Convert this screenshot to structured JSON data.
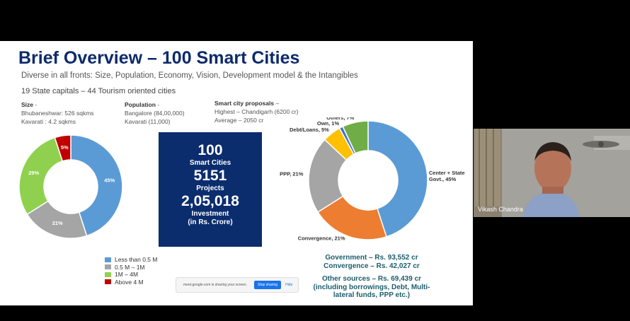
{
  "slide": {
    "title": "Brief Overview – 100 Smart Cities",
    "subtitle": "Diverse in all fronts: Size, Population, Economy, Vision, Development model & the Intangibles",
    "capitals": "19 State capitals – 44 Tourism oriented cities",
    "size": {
      "label": "Size",
      "suffix": " -",
      "line1": "Bhubaneshwar: 526 sqkms",
      "line2": "Kavarati : 4.2 sqkms"
    },
    "population": {
      "label": "Population",
      "suffix": " -",
      "line1": "Bangalore (84,00,000)",
      "line2": "Kavarati (11,000)"
    },
    "proposals": {
      "label": "Smart city proposals",
      "suffix": " –",
      "line1": "Highest – Chandigarh (6200 cr)",
      "line2": "Average – 2050 cr"
    },
    "stats": {
      "cities_value": "100",
      "cities_label": "Smart Cities",
      "projects_value": "5151",
      "projects_label": "Projects",
      "investment_value": "2,05,018",
      "investment_label1": "Investment",
      "investment_label2": "(in Rs. Crore)"
    },
    "legend": [
      {
        "label": "Less than 0.5 M",
        "color": "#5b9bd5"
      },
      {
        "label": "0.5 M – 1M",
        "color": "#a5a5a5"
      },
      {
        "label": "1M – 4M",
        "color": "#8fd14f"
      },
      {
        "label": "Above 4 M",
        "color": "#c00000"
      }
    ],
    "funds": {
      "government": "Government –  Rs. 93,552 cr",
      "convergence": "Convergence – Rs. 42,027 cr",
      "other": "Other sources – Rs. 69,439 cr",
      "note1": "(including borrowings, Debt,  Multi-",
      "note2": "lateral funds, PPP etc.)"
    }
  },
  "chart_data": [
    {
      "type": "pie",
      "title": "",
      "labels": [
        "Less than 0.5 M",
        "0.5 M – 1M",
        "1M – 4M",
        "Above 4 M"
      ],
      "values": [
        45,
        21,
        29,
        5
      ],
      "value_labels": [
        "45%",
        "21%",
        "29%",
        "5%"
      ],
      "colors": [
        "#5b9bd5",
        "#a5a5a5",
        "#8fd14f",
        "#c00000"
      ]
    },
    {
      "type": "pie",
      "title": "",
      "labels": [
        "Center + State Govt.",
        "Convergence",
        "PPP",
        "Debt/Loans",
        "Own",
        "Others"
      ],
      "values": [
        45,
        21,
        21,
        5,
        1,
        7
      ],
      "value_labels": [
        "Center + State Govt., 45%",
        "Convergence, 21%",
        "PPP, 21%",
        "Debt/Loans, 5%",
        "Own, 1%",
        "Others, 7%"
      ],
      "colors": [
        "#5b9bd5",
        "#ed7d31",
        "#a5a5a5",
        "#ffc000",
        "#4472c4",
        "#70ad47"
      ]
    }
  ],
  "screen_share": {
    "message": "meet.google.com is sharing your screen.",
    "stop_label": "Stop sharing",
    "hide_label": "Hide"
  },
  "participant": {
    "name": "Vikash Chandra"
  }
}
